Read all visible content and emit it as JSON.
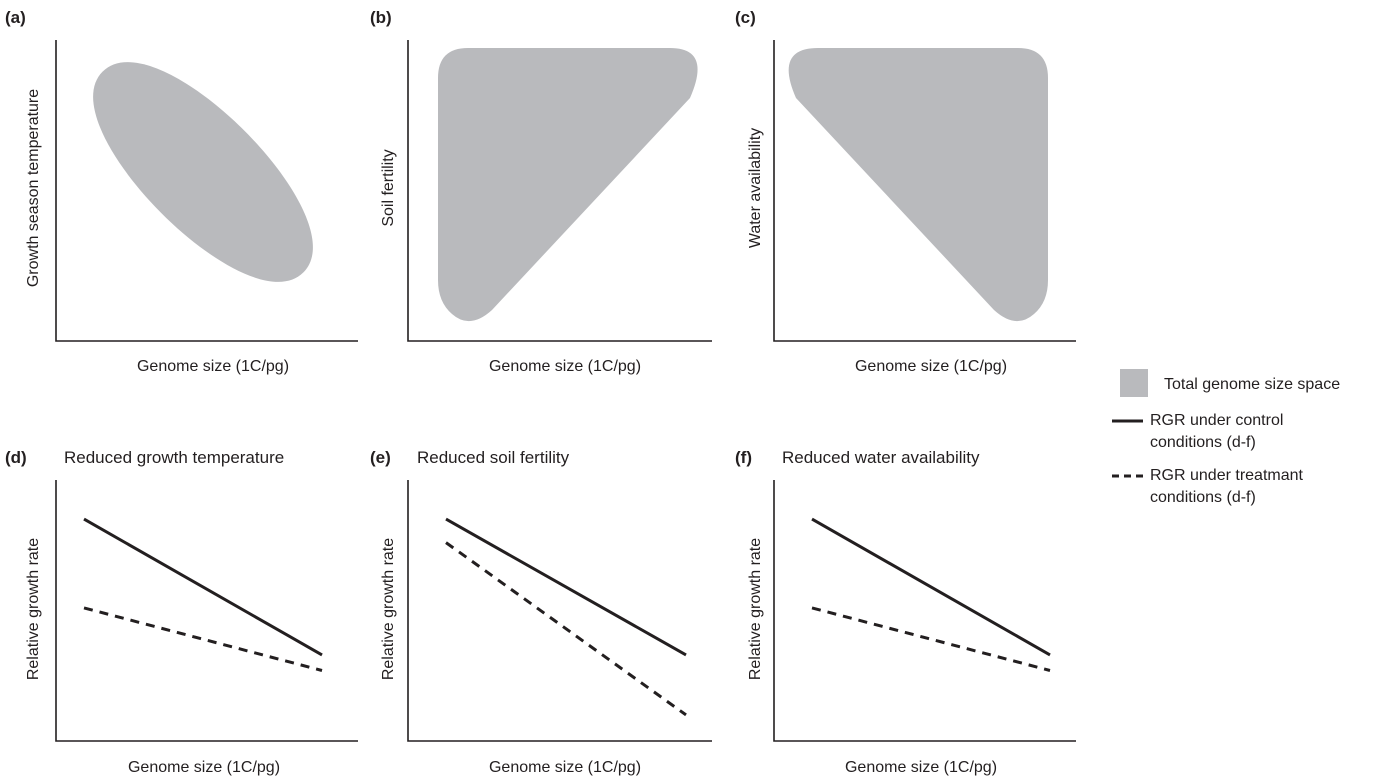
{
  "panels_top": [
    {
      "label": "(a)",
      "ylabel": "Growth season temperature",
      "xlabel": "Genome size (1C/pg)",
      "region_shape": "ellipse-negative"
    },
    {
      "label": "(b)",
      "ylabel": "Soil fertility",
      "xlabel": "Genome size (1C/pg)",
      "region_shape": "triangle-low-left"
    },
    {
      "label": "(c)",
      "ylabel": "Water availability",
      "xlabel": "Genome size (1C/pg)",
      "region_shape": "triangle-low-right"
    }
  ],
  "colors": {
    "region": "#b9babd",
    "line": "#231f20"
  },
  "legend": {
    "region": "Total genome size space",
    "control": [
      "RGR under control",
      "conditions (d-f)"
    ],
    "treatment": [
      "RGR under treatmant",
      "conditions (d-f)"
    ]
  },
  "chart_data": [
    {
      "type": "line",
      "label": "(d)",
      "title": "Reduced growth temperature",
      "xlabel": "Genome size (1C/pg)",
      "ylabel": "Relative growth rate",
      "x": [
        0,
        1
      ],
      "ylim": [
        0,
        1
      ],
      "series": [
        {
          "name": "RGR under control conditions (d-f)",
          "style": "solid",
          "values": [
            0.85,
            0.33
          ]
        },
        {
          "name": "RGR under treatmant conditions (d-f)",
          "style": "dashed",
          "values": [
            0.51,
            0.27
          ]
        }
      ]
    },
    {
      "type": "line",
      "label": "(e)",
      "title": "Reduced soil fertility",
      "xlabel": "Genome size (1C/pg)",
      "ylabel": "Relative growth rate",
      "x": [
        0,
        1
      ],
      "ylim": [
        0,
        1
      ],
      "series": [
        {
          "name": "RGR under control conditions (d-f)",
          "style": "solid",
          "values": [
            0.85,
            0.33
          ]
        },
        {
          "name": "RGR under treatmant conditions (d-f)",
          "style": "dashed",
          "values": [
            0.76,
            0.1
          ]
        }
      ]
    },
    {
      "type": "line",
      "label": "(f)",
      "title": "Reduced water availability",
      "xlabel": "Genome size (1C/pg)",
      "ylabel": "Relative growth rate",
      "x": [
        0,
        1
      ],
      "ylim": [
        0,
        1
      ],
      "series": [
        {
          "name": "RGR under control conditions (d-f)",
          "style": "solid",
          "values": [
            0.85,
            0.33
          ]
        },
        {
          "name": "RGR under treatmant conditions (d-f)",
          "style": "dashed",
          "values": [
            0.51,
            0.27
          ]
        }
      ]
    }
  ]
}
